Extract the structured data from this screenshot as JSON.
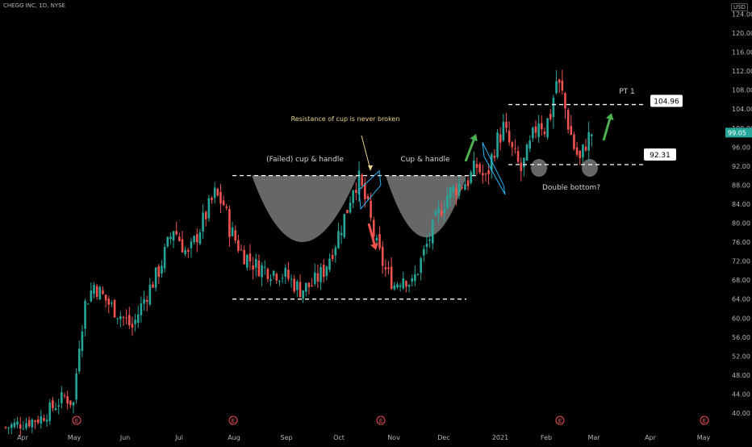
{
  "header": {
    "symbol_line": "CHEGG INC, 1D, NYSE",
    "currency": "USD"
  },
  "colors": {
    "up": "#26a69a",
    "down": "#ef5350",
    "bg": "#000000",
    "text": "#b2b5be",
    "last_price_bg": "#26a69a"
  },
  "chart_data": {
    "type": "candlestick",
    "title": "CHEGG INC, 1D, NYSE",
    "x_ticks": [
      "Apr",
      "May",
      "Jun",
      "Jul",
      "Aug",
      "Sep",
      "Oct",
      "Nov",
      "Dec",
      "2021",
      "Feb",
      "Mar",
      "Apr",
      "May"
    ],
    "y_ticks": [
      "40.00",
      "44.00",
      "48.00",
      "52.00",
      "56.00",
      "60.00",
      "64.00",
      "68.00",
      "72.00",
      "76.00",
      "80.00",
      "84.00",
      "88.00",
      "92.00",
      "96.00",
      "100.00",
      "104.00",
      "108.00",
      "112.00",
      "116.00",
      "120.00",
      "124.00"
    ],
    "ylim": [
      37,
      125
    ],
    "last_price": "99.05",
    "price_path": [
      [
        0,
        37
      ],
      [
        12,
        39
      ],
      [
        20,
        43.5
      ],
      [
        23,
        42
      ],
      [
        25,
        55
      ],
      [
        27,
        63
      ],
      [
        30,
        67
      ],
      [
        35,
        63
      ],
      [
        40,
        60
      ],
      [
        43,
        58
      ],
      [
        47,
        64
      ],
      [
        52,
        70
      ],
      [
        57,
        79
      ],
      [
        62,
        73
      ],
      [
        66,
        79
      ],
      [
        71,
        86
      ],
      [
        74,
        84
      ],
      [
        76,
        79
      ],
      [
        80,
        74
      ],
      [
        85,
        71
      ],
      [
        90,
        70
      ],
      [
        95,
        69
      ],
      [
        100,
        66
      ],
      [
        104,
        67
      ],
      [
        108,
        70
      ],
      [
        112,
        76
      ],
      [
        116,
        83
      ],
      [
        118,
        88
      ],
      [
        120,
        89
      ],
      [
        123,
        83
      ],
      [
        126,
        75
      ],
      [
        129,
        70
      ],
      [
        132,
        67
      ],
      [
        135,
        69
      ],
      [
        138,
        67
      ],
      [
        141,
        72
      ],
      [
        144,
        77
      ],
      [
        147,
        82
      ],
      [
        150,
        86
      ],
      [
        154,
        88
      ],
      [
        157,
        89
      ],
      [
        160,
        92
      ],
      [
        163,
        89
      ],
      [
        166,
        96
      ],
      [
        169,
        100
      ],
      [
        172,
        95
      ],
      [
        175,
        91
      ],
      [
        178,
        96
      ],
      [
        181,
        102
      ],
      [
        183,
        100
      ],
      [
        185,
        103
      ],
      [
        187,
        110
      ],
      [
        189,
        107
      ],
      [
        191,
        101
      ],
      [
        193,
        96
      ],
      [
        195,
        93
      ],
      [
        197,
        97
      ],
      [
        199,
        99
      ]
    ],
    "series_names": [],
    "annotations": {
      "resistance_note": "Resistance of cup is never broken",
      "failed_cup": "(Failed) cup & handle",
      "cup": "Cup & handle",
      "pt1": "PT 1",
      "double_bottom": "Double bottom?",
      "level_high": "104.96",
      "level_low": "92.31",
      "resistance_level": 90,
      "support_level": 64,
      "earnings_marker": "E"
    }
  }
}
